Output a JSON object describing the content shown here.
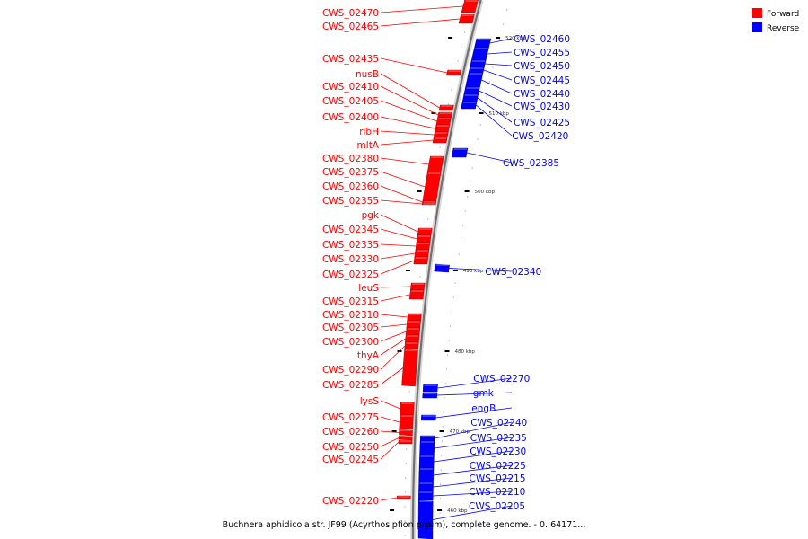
{
  "legend": [
    {
      "label": "Forward",
      "color": "#ff0000"
    },
    {
      "label": "Reverse",
      "color": "#0000ff"
    }
  ],
  "caption": "Buchnera aphidicola str. JF99 (Acyrthosipfion pisum), complete genome. - 0..64171...",
  "ticks": [
    {
      "label": "520 kbp",
      "pos": 520
    },
    {
      "label": "510 kbp",
      "pos": 510
    },
    {
      "label": "500 kbp",
      "pos": 500
    },
    {
      "label": "490 kbp",
      "pos": 490
    },
    {
      "label": "480 kbp",
      "pos": 480
    },
    {
      "label": "470 kbp",
      "pos": 470
    },
    {
      "label": "460 kbp",
      "pos": 460
    }
  ],
  "forward_genes": [
    "CWS_02470",
    "CWS_02465",
    "CWS_02435",
    "nusB",
    "CWS_02410",
    "CWS_02405",
    "CWS_02400",
    "ribH",
    "mltA",
    "CWS_02380",
    "CWS_02375",
    "CWS_02360",
    "CWS_02355",
    "pgk",
    "CWS_02345",
    "CWS_02335",
    "CWS_02330",
    "CWS_02325",
    "leuS",
    "CWS_02315",
    "CWS_02310",
    "CWS_02305",
    "CWS_02300",
    "thyA",
    "CWS_02290",
    "CWS_02285",
    "lysS",
    "CWS_02275",
    "CWS_02260",
    "CWS_02250",
    "CWS_02245",
    "CWS_02220"
  ],
  "reverse_genes": [
    "CWS_02460",
    "CWS_02455",
    "CWS_02450",
    "CWS_02445",
    "CWS_02440",
    "CWS_02430",
    "CWS_02425",
    "CWS_02420",
    "CWS_02385",
    "CWS_02340",
    "CWS_02270",
    "gmk",
    "engB",
    "CWS_02240",
    "CWS_02235",
    "CWS_02230",
    "CWS_02225",
    "CWS_02215",
    "CWS_02210",
    "CWS_02205"
  ]
}
